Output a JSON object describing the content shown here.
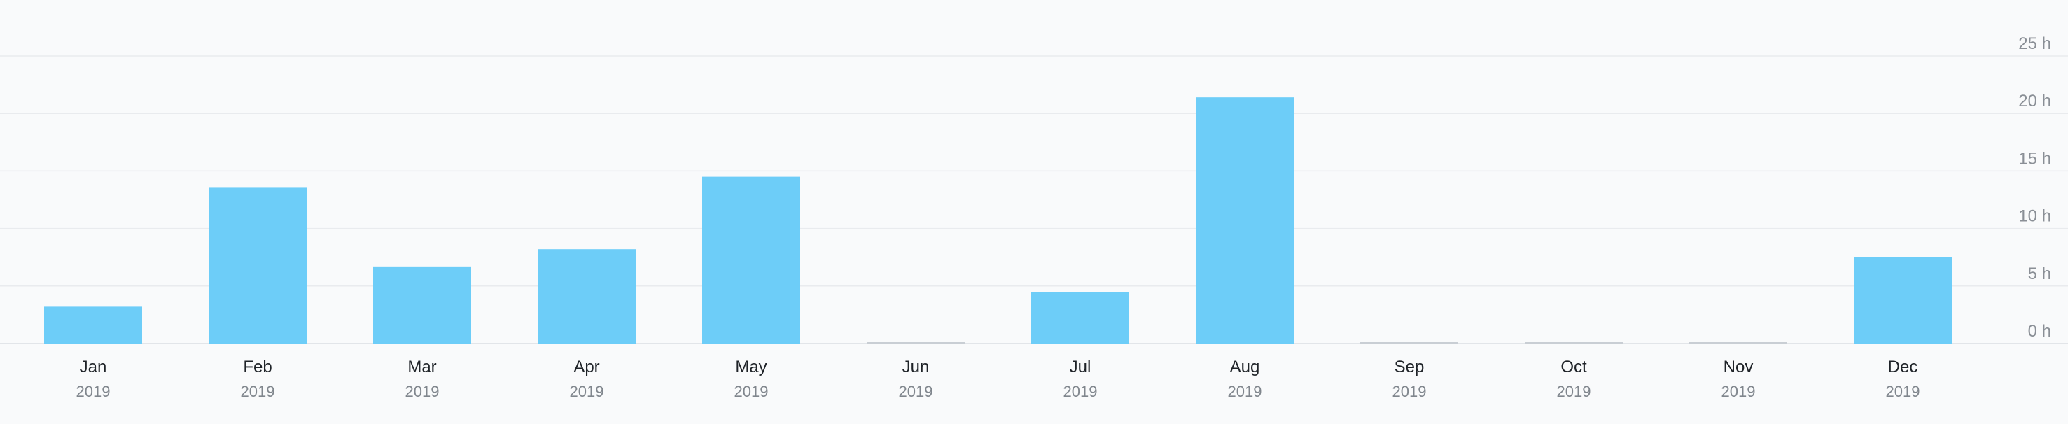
{
  "chart_data": {
    "type": "bar",
    "title": "",
    "xlabel": "",
    "ylabel": "",
    "categories": [
      "Jan",
      "Feb",
      "Mar",
      "Apr",
      "May",
      "Jun",
      "Jul",
      "Aug",
      "Sep",
      "Oct",
      "Nov",
      "Dec"
    ],
    "sublabels": [
      "2019",
      "2019",
      "2019",
      "2019",
      "2019",
      "2019",
      "2019",
      "2019",
      "2019",
      "2019",
      "2019",
      "2019"
    ],
    "values": [
      3.2,
      13.6,
      6.7,
      8.2,
      14.5,
      0,
      4.5,
      21.4,
      0,
      0,
      0,
      7.5
    ],
    "ylim": [
      0,
      25
    ],
    "yticks": [
      0,
      5,
      10,
      15,
      20,
      25
    ],
    "ytick_labels": [
      "0 h",
      "5 h",
      "10 h",
      "15 h",
      "20 h",
      "25 h"
    ],
    "grid": true,
    "legend": "none",
    "bar_color": "#6dcdf8",
    "zero_bar_color": "#c9ced4"
  }
}
